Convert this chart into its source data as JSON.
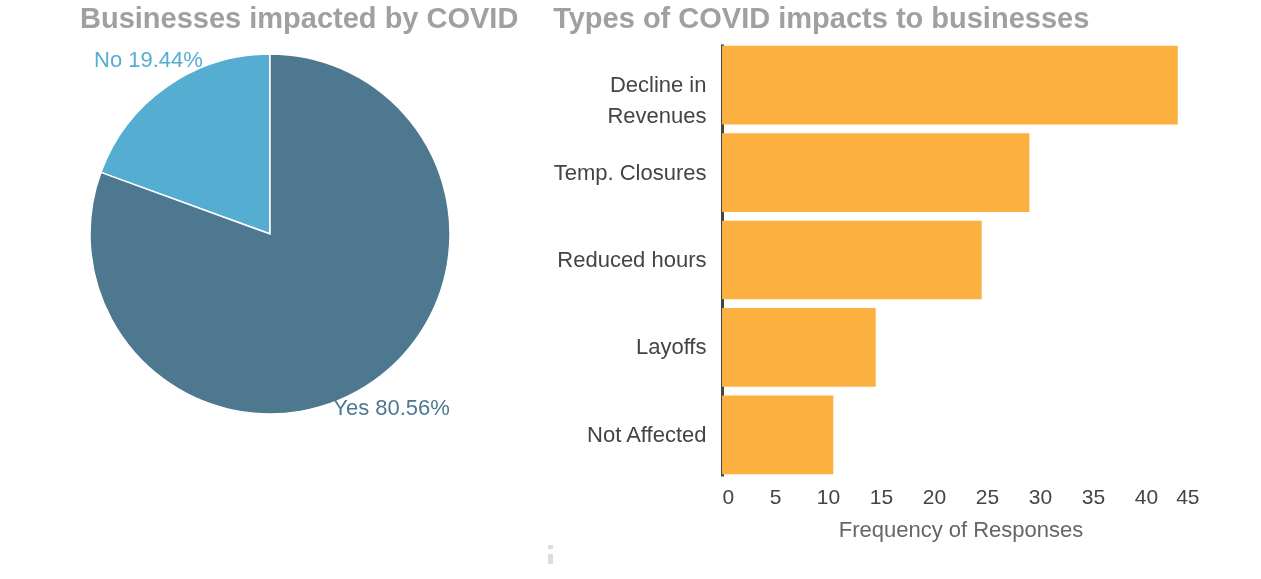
{
  "chart_data": [
    {
      "type": "pie",
      "title": "Businesses impacted by COVID",
      "categories": [
        "No",
        "Yes"
      ],
      "values": [
        19.44,
        80.56
      ],
      "colors": [
        "#55aed1",
        "#4e7790"
      ],
      "value_labels": [
        "19.44%",
        "80.56%"
      ]
    },
    {
      "type": "bar",
      "orientation": "horizontal",
      "title": "Types of COVID impacts to businesses",
      "xlabel": "Frequency of Responses",
      "categories": [
        "Decline in Revenues",
        "Temp. Closures",
        "Reduced hours",
        "Layoffs",
        "Not Affected"
      ],
      "values": [
        43,
        29,
        24.5,
        14.5,
        10.5
      ],
      "color": "#fbb040",
      "xlim": [
        0,
        45
      ],
      "xticks": [
        0,
        5,
        10,
        15,
        20,
        25,
        30,
        35,
        40,
        45
      ]
    }
  ]
}
